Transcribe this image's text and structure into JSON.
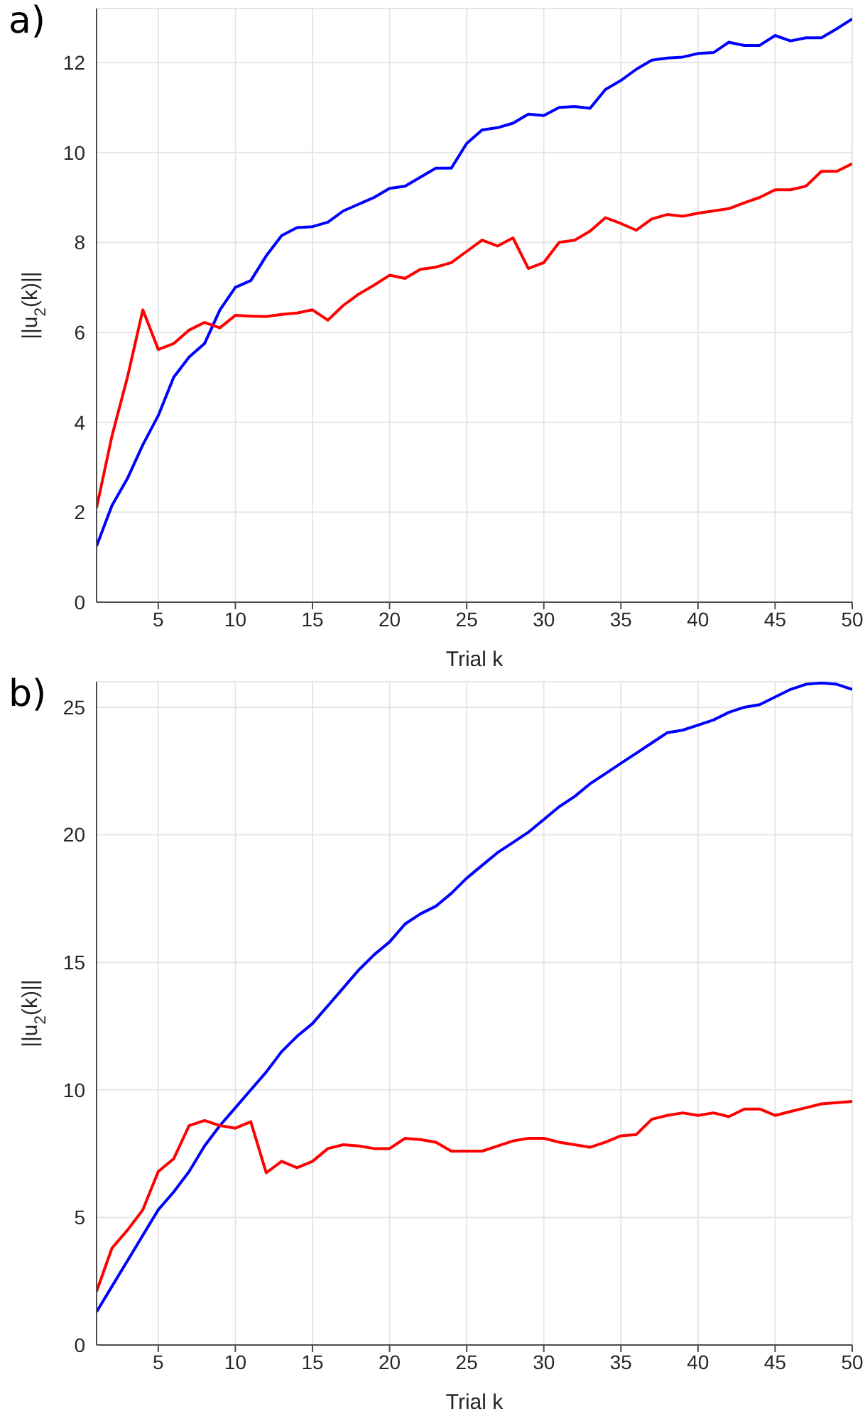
{
  "chart_data": [
    {
      "type": "line",
      "title": "a)",
      "xlabel": "Trial k",
      "ylabel": "||u$_{2}$(k)||",
      "x": [
        1,
        2,
        3,
        4,
        5,
        6,
        7,
        8,
        9,
        10,
        11,
        12,
        13,
        14,
        15,
        16,
        17,
        18,
        19,
        20,
        21,
        22,
        23,
        24,
        25,
        26,
        27,
        28,
        29,
        30,
        31,
        32,
        33,
        34,
        35,
        36,
        37,
        38,
        39,
        40,
        41,
        42,
        43,
        44,
        45,
        46,
        47,
        48,
        49,
        50
      ],
      "series": [
        {
          "color": "#0000ff",
          "values": [
            1.25,
            2.15,
            2.75,
            3.5,
            4.15,
            5.0,
            5.45,
            5.75,
            6.5,
            7.0,
            7.15,
            7.7,
            8.15,
            8.33,
            8.35,
            8.45,
            8.7,
            8.85,
            9.0,
            9.2,
            9.25,
            9.45,
            9.65,
            9.65,
            10.2,
            10.5,
            10.55,
            10.65,
            10.85,
            10.82,
            11.0,
            11.02,
            10.98,
            11.4,
            11.6,
            11.85,
            12.05,
            12.1,
            12.12,
            12.2,
            12.22,
            12.45,
            12.38,
            12.38,
            12.6,
            12.48,
            12.55,
            12.55,
            12.75,
            12.97
          ]
        },
        {
          "color": "#ff0000",
          "values": [
            2.1,
            3.7,
            5.0,
            6.5,
            5.62,
            5.75,
            6.05,
            6.22,
            6.1,
            6.38,
            6.36,
            6.35,
            6.4,
            6.43,
            6.5,
            6.27,
            6.6,
            6.85,
            7.05,
            7.27,
            7.2,
            7.4,
            7.45,
            7.55,
            7.8,
            8.05,
            7.92,
            8.1,
            7.42,
            7.55,
            8.0,
            8.05,
            8.25,
            8.55,
            8.42,
            8.27,
            8.52,
            8.62,
            8.58,
            8.65,
            8.7,
            8.75,
            8.88,
            9.0,
            9.17,
            9.17,
            9.25,
            9.58,
            9.58,
            9.75
          ]
        }
      ],
      "xlim": [
        1,
        50
      ],
      "xticks": [
        5,
        10,
        15,
        20,
        25,
        30,
        35,
        40,
        45,
        50
      ],
      "ylim": [
        0,
        13.2
      ],
      "yticks": [
        0,
        2,
        4,
        6,
        8,
        10,
        12
      ],
      "grid": true
    },
    {
      "type": "line",
      "title": "b)",
      "xlabel": "Trial k",
      "ylabel": "||u$_{2}$(k)||",
      "x": [
        1,
        2,
        3,
        4,
        5,
        6,
        7,
        8,
        9,
        10,
        11,
        12,
        13,
        14,
        15,
        16,
        17,
        18,
        19,
        20,
        21,
        22,
        23,
        24,
        25,
        26,
        27,
        28,
        29,
        30,
        31,
        32,
        33,
        34,
        35,
        36,
        37,
        38,
        39,
        40,
        41,
        42,
        43,
        44,
        45,
        46,
        47,
        48,
        49,
        50
      ],
      "series": [
        {
          "color": "#0000ff",
          "values": [
            1.3,
            2.3,
            3.3,
            4.3,
            5.3,
            6.0,
            6.8,
            7.8,
            8.6,
            9.3,
            10.0,
            10.7,
            11.5,
            12.1,
            12.6,
            13.3,
            14.0,
            14.7,
            15.3,
            15.8,
            16.5,
            16.9,
            17.2,
            17.7,
            18.3,
            18.8,
            19.3,
            19.7,
            20.1,
            20.6,
            21.1,
            21.5,
            22.0,
            22.4,
            22.8,
            23.2,
            23.6,
            24.0,
            24.1,
            24.3,
            24.5,
            24.8,
            25.0,
            25.1,
            25.4,
            25.7,
            25.9,
            25.95,
            25.9,
            25.7
          ]
        },
        {
          "color": "#ff0000",
          "values": [
            2.1,
            3.8,
            4.5,
            5.3,
            6.8,
            7.3,
            8.6,
            8.8,
            8.6,
            8.5,
            8.75,
            6.75,
            7.2,
            6.95,
            7.2,
            7.7,
            7.85,
            7.8,
            7.7,
            7.7,
            8.1,
            8.05,
            7.95,
            7.6,
            7.6,
            7.6,
            7.8,
            8.0,
            8.1,
            8.1,
            7.95,
            7.85,
            7.75,
            7.95,
            8.2,
            8.25,
            8.85,
            9.0,
            9.1,
            9.0,
            9.1,
            8.95,
            9.25,
            9.25,
            9.0,
            9.15,
            9.3,
            9.45,
            9.5,
            9.55
          ]
        }
      ],
      "xlim": [
        1,
        50
      ],
      "xticks": [
        5,
        10,
        15,
        20,
        25,
        30,
        35,
        40,
        45,
        50
      ],
      "ylim": [
        0,
        26
      ],
      "yticks": [
        0,
        5,
        10,
        15,
        20,
        25
      ],
      "grid": true
    }
  ]
}
